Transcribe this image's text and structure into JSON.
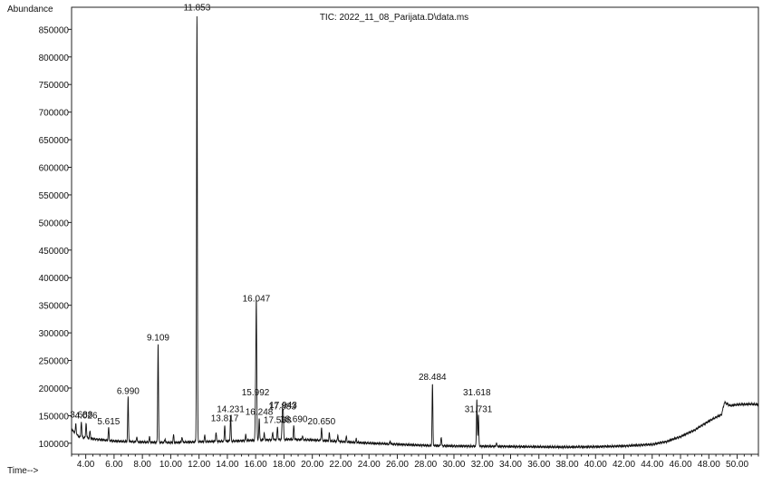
{
  "chart_data": {
    "type": "line",
    "title": "TIC: 2022_11_08_Parijata.D\\data.ms",
    "ylabel": "Abundance",
    "xlabel": "Time-->",
    "xlim": [
      3.0,
      51.5
    ],
    "ylim": [
      80000,
      890000
    ],
    "x_ticks": [
      "4.00",
      "6.00",
      "8.00",
      "10.00",
      "12.00",
      "14.00",
      "16.00",
      "18.00",
      "20.00",
      "22.00",
      "24.00",
      "26.00",
      "28.00",
      "30.00",
      "32.00",
      "34.00",
      "36.00",
      "38.00",
      "40.00",
      "42.00",
      "44.00",
      "46.00",
      "48.00",
      "50.00"
    ],
    "y_ticks": [
      "100000",
      "150000",
      "200000",
      "250000",
      "300000",
      "350000",
      "400000",
      "450000",
      "500000",
      "550000",
      "600000",
      "650000",
      "700000",
      "750000",
      "800000",
      "850000"
    ],
    "baseline": [
      [
        3.0,
        125000
      ],
      [
        3.5,
        112000
      ],
      [
        4.5,
        108000
      ],
      [
        6.0,
        104000
      ],
      [
        8.0,
        102000
      ],
      [
        10.0,
        101000
      ],
      [
        12.5,
        103000
      ],
      [
        14.5,
        104000
      ],
      [
        16.5,
        106000
      ],
      [
        18.5,
        107000
      ],
      [
        20.0,
        106000
      ],
      [
        22.0,
        103000
      ],
      [
        24.0,
        100000
      ],
      [
        26.0,
        98000
      ],
      [
        28.0,
        96000
      ],
      [
        30.0,
        95000
      ],
      [
        32.0,
        94500
      ],
      [
        34.0,
        94000
      ],
      [
        36.0,
        93500
      ],
      [
        38.0,
        93000
      ],
      [
        40.0,
        93500
      ],
      [
        42.0,
        95000
      ],
      [
        44.0,
        98000
      ],
      [
        45.0,
        103000
      ],
      [
        46.0,
        112000
      ],
      [
        47.0,
        124000
      ],
      [
        48.0,
        140000
      ],
      [
        48.9,
        152000
      ],
      [
        49.1,
        174000
      ],
      [
        49.5,
        168000
      ],
      [
        50.0,
        170000
      ],
      [
        51.0,
        171000
      ],
      [
        51.5,
        170000
      ]
    ],
    "peaks": [
      {
        "x": 3.688,
        "y": 140000,
        "label": "3.688"
      },
      {
        "x": 4.026,
        "y": 138000,
        "label": "4.026"
      },
      {
        "x": 5.615,
        "y": 128000,
        "label": "5.615"
      },
      {
        "x": 6.99,
        "y": 183000,
        "label": "6.990"
      },
      {
        "x": 9.109,
        "y": 280000,
        "label": "9.109"
      },
      {
        "x": 11.853,
        "y": 878000,
        "label": "11.853"
      },
      {
        "x": 13.817,
        "y": 133000,
        "label": "13.817"
      },
      {
        "x": 14.231,
        "y": 150000,
        "label": "14.231"
      },
      {
        "x": 15.992,
        "y": 180000,
        "label": "15.992"
      },
      {
        "x": 16.047,
        "y": 350000,
        "label": "16.047"
      },
      {
        "x": 16.248,
        "y": 145000,
        "label": "16.248"
      },
      {
        "x": 17.538,
        "y": 130000,
        "label": "17.538"
      },
      {
        "x": 17.883,
        "y": 155000,
        "label": "17.883"
      },
      {
        "x": 17.943,
        "y": 157000,
        "label": "17.943"
      },
      {
        "x": 18.69,
        "y": 132000,
        "label": "18.690"
      },
      {
        "x": 20.65,
        "y": 128000,
        "label": "20.650"
      },
      {
        "x": 28.484,
        "y": 208000,
        "label": "28.484"
      },
      {
        "x": 31.618,
        "y": 180000,
        "label": "31.618"
      },
      {
        "x": 31.731,
        "y": 150000,
        "label": "31.731"
      }
    ],
    "minor_peaks": [
      [
        3.3,
        135000
      ],
      [
        4.3,
        122000
      ],
      [
        7.6,
        112000
      ],
      [
        8.5,
        111000
      ],
      [
        9.6,
        108000
      ],
      [
        10.2,
        115000
      ],
      [
        10.8,
        112000
      ],
      [
        12.4,
        114000
      ],
      [
        13.2,
        120000
      ],
      [
        15.3,
        115000
      ],
      [
        16.6,
        118000
      ],
      [
        17.2,
        120000
      ],
      [
        19.3,
        113000
      ],
      [
        21.2,
        118000
      ],
      [
        21.8,
        115000
      ],
      [
        22.4,
        112000
      ],
      [
        23.1,
        108000
      ],
      [
        25.5,
        104000
      ],
      [
        29.1,
        112000
      ],
      [
        33.0,
        101000
      ]
    ],
    "grid": false,
    "legend": "none"
  }
}
